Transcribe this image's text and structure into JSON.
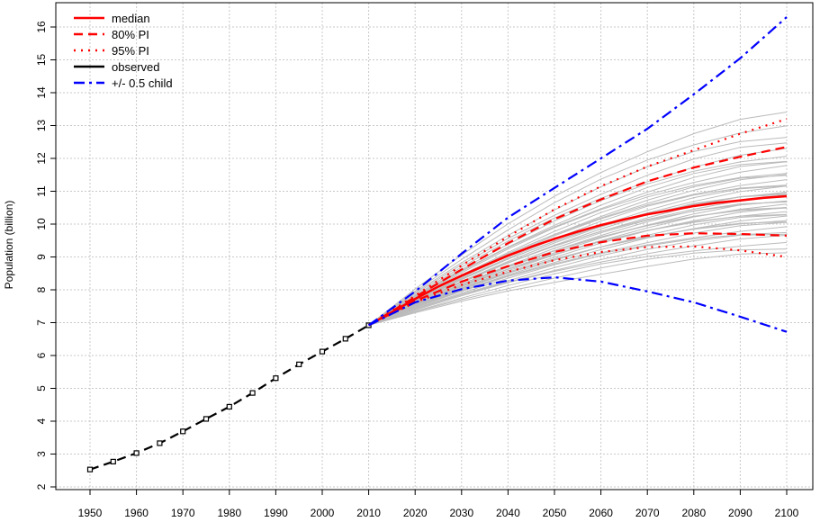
{
  "chart_data": {
    "type": "line",
    "title": "",
    "xlabel": "",
    "ylabel": "Population (billion)",
    "xlim": [
      1950,
      2100
    ],
    "ylim": [
      2,
      16
    ],
    "x_ticks": [
      1950,
      1960,
      1970,
      1980,
      1990,
      2000,
      2010,
      2020,
      2030,
      2040,
      2050,
      2060,
      2070,
      2080,
      2090,
      2100
    ],
    "y_ticks": [
      2,
      3,
      4,
      5,
      6,
      7,
      8,
      9,
      10,
      11,
      12,
      13,
      14,
      15,
      16
    ],
    "grid": true,
    "legend_position": "top-left",
    "legend": [
      {
        "label": "median",
        "color": "#ff0000",
        "style": "solid"
      },
      {
        "label": "80% PI",
        "color": "#ff0000",
        "style": "dashed"
      },
      {
        "label": "95% PI",
        "color": "#ff0000",
        "style": "dotted"
      },
      {
        "label": "observed",
        "color": "#000000",
        "style": "solid"
      },
      {
        "label": "+/- 0.5 child",
        "color": "#0000ff",
        "style": "dashdot"
      }
    ],
    "series": [
      {
        "name": "observed",
        "color": "#000000",
        "style": "dashed",
        "markers": true,
        "x": [
          1950,
          1955,
          1960,
          1965,
          1970,
          1975,
          1980,
          1985,
          1990,
          1995,
          2000,
          2005,
          2010
        ],
        "y": [
          2.53,
          2.77,
          3.03,
          3.33,
          3.69,
          4.07,
          4.44,
          4.86,
          5.31,
          5.73,
          6.12,
          6.51,
          6.92
        ]
      },
      {
        "name": "median",
        "color": "#ff0000",
        "style": "solid",
        "x": [
          2010,
          2015,
          2020,
          2025,
          2030,
          2035,
          2040,
          2045,
          2050,
          2055,
          2060,
          2065,
          2070,
          2075,
          2080,
          2085,
          2090,
          2095,
          2100
        ],
        "y": [
          6.92,
          7.32,
          7.72,
          8.1,
          8.43,
          8.74,
          9.04,
          9.31,
          9.55,
          9.77,
          9.97,
          10.14,
          10.3,
          10.42,
          10.55,
          10.65,
          10.72,
          10.8,
          10.85
        ]
      },
      {
        "name": "80% PI upper",
        "color": "#ff0000",
        "style": "dashed",
        "x": [
          2010,
          2020,
          2030,
          2040,
          2050,
          2060,
          2070,
          2080,
          2090,
          2100
        ],
        "y": [
          6.92,
          7.78,
          8.62,
          9.42,
          10.15,
          10.75,
          11.3,
          11.72,
          12.05,
          12.35
        ]
      },
      {
        "name": "80% PI lower",
        "color": "#ff0000",
        "style": "dashed",
        "x": [
          2010,
          2020,
          2030,
          2040,
          2050,
          2060,
          2070,
          2080,
          2090,
          2100
        ],
        "y": [
          6.92,
          7.66,
          8.25,
          8.72,
          9.15,
          9.45,
          9.65,
          9.72,
          9.7,
          9.65
        ]
      },
      {
        "name": "95% PI upper",
        "color": "#ff0000",
        "style": "dotted",
        "x": [
          2010,
          2020,
          2030,
          2040,
          2050,
          2060,
          2070,
          2080,
          2090,
          2100
        ],
        "y": [
          6.92,
          7.82,
          8.74,
          9.62,
          10.45,
          11.15,
          11.75,
          12.25,
          12.75,
          13.2
        ]
      },
      {
        "name": "95% PI lower",
        "color": "#ff0000",
        "style": "dotted",
        "x": [
          2010,
          2020,
          2030,
          2040,
          2050,
          2060,
          2070,
          2080,
          2090,
          2100
        ],
        "y": [
          6.92,
          7.62,
          8.15,
          8.55,
          8.9,
          9.15,
          9.3,
          9.32,
          9.2,
          9.0
        ]
      },
      {
        "name": "+/- 0.5 child upper",
        "color": "#0000ff",
        "style": "dashdot",
        "x": [
          2010,
          2020,
          2030,
          2040,
          2050,
          2060,
          2070,
          2080,
          2090,
          2100
        ],
        "y": [
          6.92,
          7.95,
          9.1,
          10.2,
          11.1,
          12.0,
          12.9,
          13.95,
          15.05,
          16.3
        ]
      },
      {
        "name": "+/- 0.5 child lower",
        "color": "#0000ff",
        "style": "dashdot",
        "x": [
          2010,
          2020,
          2030,
          2040,
          2050,
          2060,
          2070,
          2080,
          2090,
          2100
        ],
        "y": [
          6.92,
          7.62,
          8.02,
          8.28,
          8.38,
          8.25,
          7.95,
          7.62,
          7.18,
          6.72
        ]
      }
    ],
    "trajectories": {
      "color": "#bbbbbb",
      "x": [
        2010,
        2020,
        2030,
        2040,
        2050,
        2060,
        2070,
        2080,
        2090,
        2100
      ],
      "end_values": [
        9.1,
        9.3,
        9.45,
        9.6,
        9.7,
        9.8,
        9.9,
        10.0,
        10.1,
        10.15,
        10.2,
        10.25,
        10.35,
        10.4,
        10.45,
        10.5,
        10.55,
        10.6,
        10.65,
        10.7,
        10.75,
        10.85,
        10.9,
        10.95,
        11.0,
        11.1,
        11.15,
        11.25,
        11.35,
        11.45,
        11.5,
        11.6,
        11.75,
        11.85,
        11.95,
        12.1,
        12.25,
        12.45,
        12.7,
        13.0,
        13.35
      ]
    }
  }
}
